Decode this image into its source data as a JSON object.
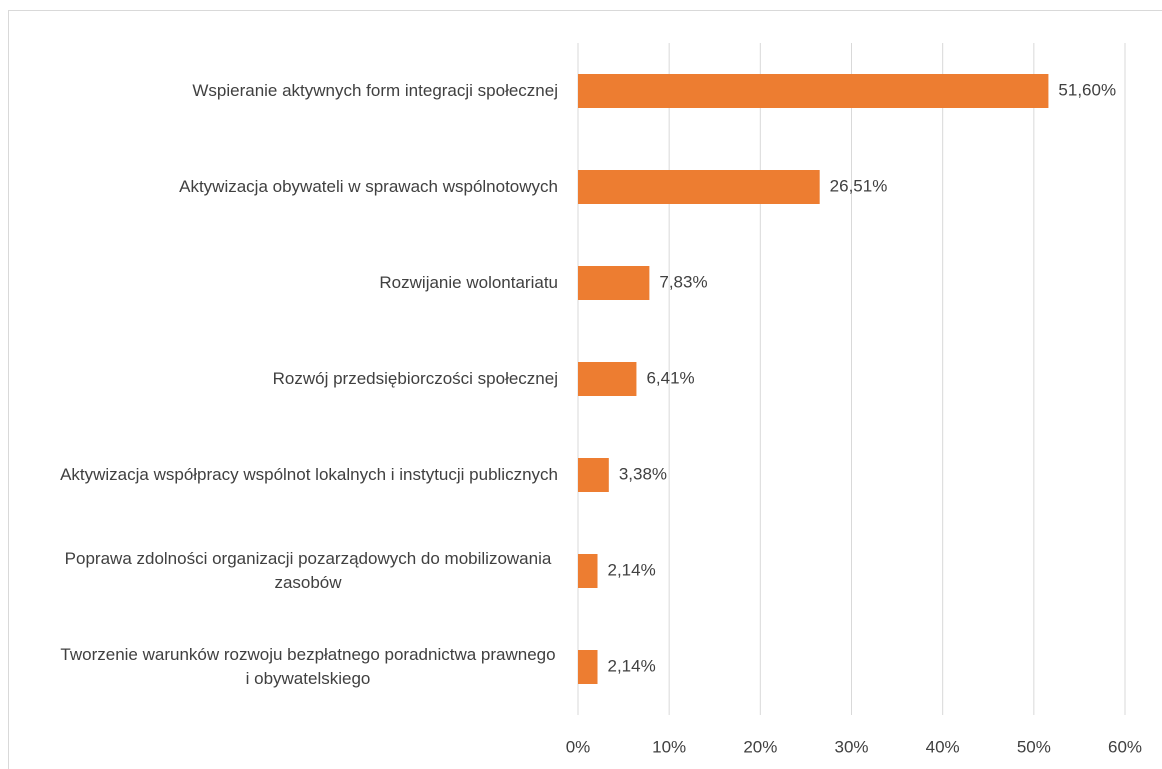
{
  "chart_data": {
    "type": "bar",
    "orientation": "horizontal",
    "categories": [
      "Wspieranie aktywnych form integracji społecznej",
      "Aktywizacja obywateli w sprawach wspólnotowych",
      "Rozwijanie wolontariatu",
      "Rozwój przedsiębiorczości społecznej",
      "Aktywizacja współpracy wspólnot lokalnych i instytucji publicznych",
      "Poprawa zdolności organizacji pozarządowych do mobilizowania zasobów",
      "Tworzenie warunków rozwoju bezpłatnego poradnictwa prawnego i obywatelskiego"
    ],
    "values": [
      51.6,
      26.51,
      7.83,
      6.41,
      3.38,
      2.14,
      2.14
    ],
    "value_labels": [
      "51,60%",
      "26,51%",
      "7,83%",
      "6,41%",
      "3,38%",
      "2,14%",
      "2,14%"
    ],
    "color": "#ed7d31",
    "xlim": [
      0,
      60
    ],
    "xticks": [
      {
        "value": 0,
        "label": "0%"
      },
      {
        "value": 10,
        "label": "10%"
      },
      {
        "value": 20,
        "label": "20%"
      },
      {
        "value": 30,
        "label": "30%"
      },
      {
        "value": 40,
        "label": "40%"
      },
      {
        "value": 50,
        "label": "50%"
      },
      {
        "value": 60,
        "label": "60%"
      }
    ],
    "grid": true
  }
}
